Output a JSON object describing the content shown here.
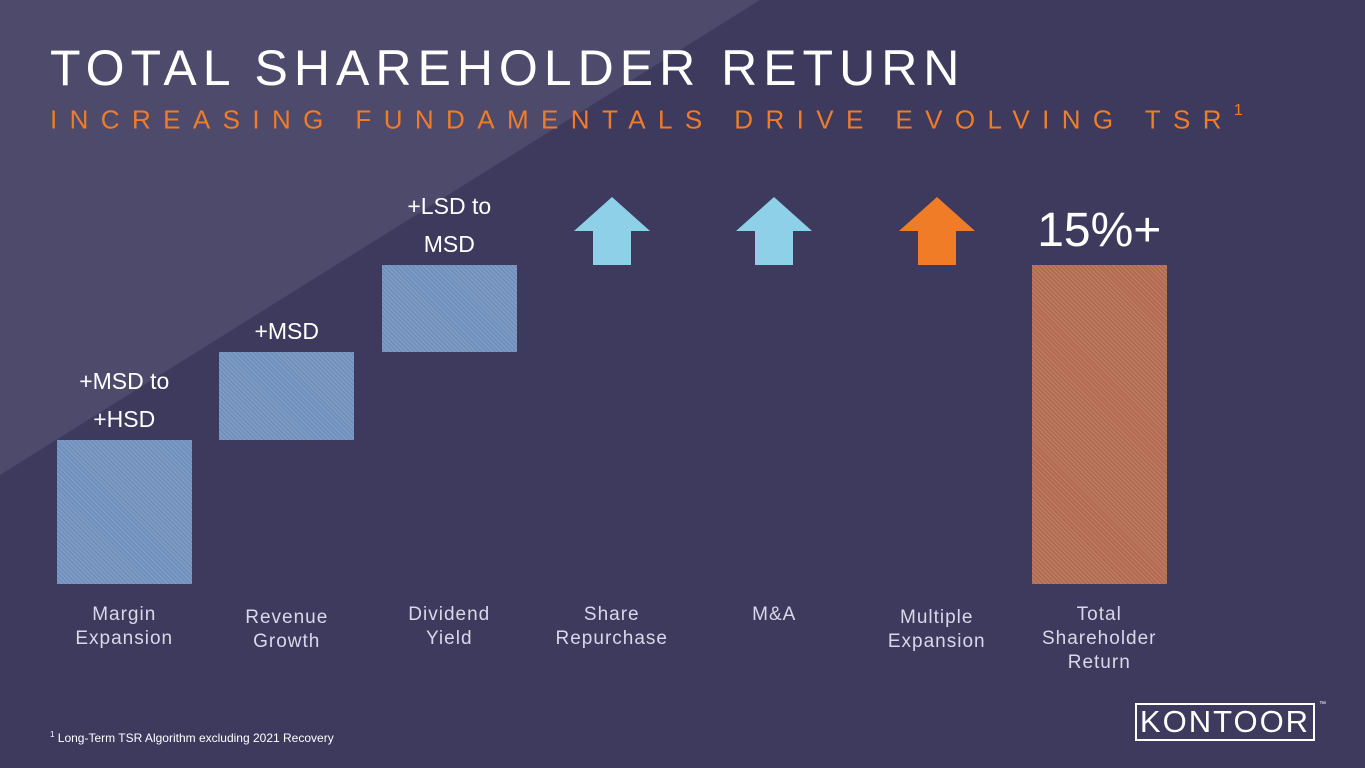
{
  "title": "TOTAL SHAREHOLDER RETURN",
  "subtitle": "INCREASING FUNDAMENTALS DRIVE EVOLVING TSR",
  "subtitle_note_marker": "1",
  "chart_data": {
    "type": "bar",
    "subtype": "waterfall",
    "title": "TOTAL SHAREHOLDER RETURN",
    "xlabel": "",
    "ylabel": "",
    "grid": false,
    "categories": [
      "Margin Expansion",
      "Revenue Growth",
      "Dividend Yield",
      "Share Repurchase",
      "M&A",
      "Multiple Expansion",
      "Total Shareholder Return"
    ],
    "labels": [
      "+MSD to +HSD",
      "+MSD",
      "+LSD to MSD",
      "",
      "",
      "",
      "15%+"
    ],
    "relative_steps": [
      1.65,
      1.0,
      1.0,
      null,
      null,
      null,
      null
    ],
    "indicators": [
      null,
      null,
      null,
      "up",
      "up",
      "up",
      null
    ],
    "total": 3.65,
    "total_label": "15%+",
    "colors": {
      "contribution_bar": "#6f8fbd",
      "total_bar": "#b26a4e",
      "up_arrow_blue": "#8ed0e8",
      "up_arrow_orange": "#f07c28"
    }
  },
  "footnote": {
    "marker": "1",
    "text": " Long-Term TSR Algorithm excluding 2021 Recovery"
  },
  "logo": {
    "text": "KONTOOR",
    "trademark": "™"
  }
}
